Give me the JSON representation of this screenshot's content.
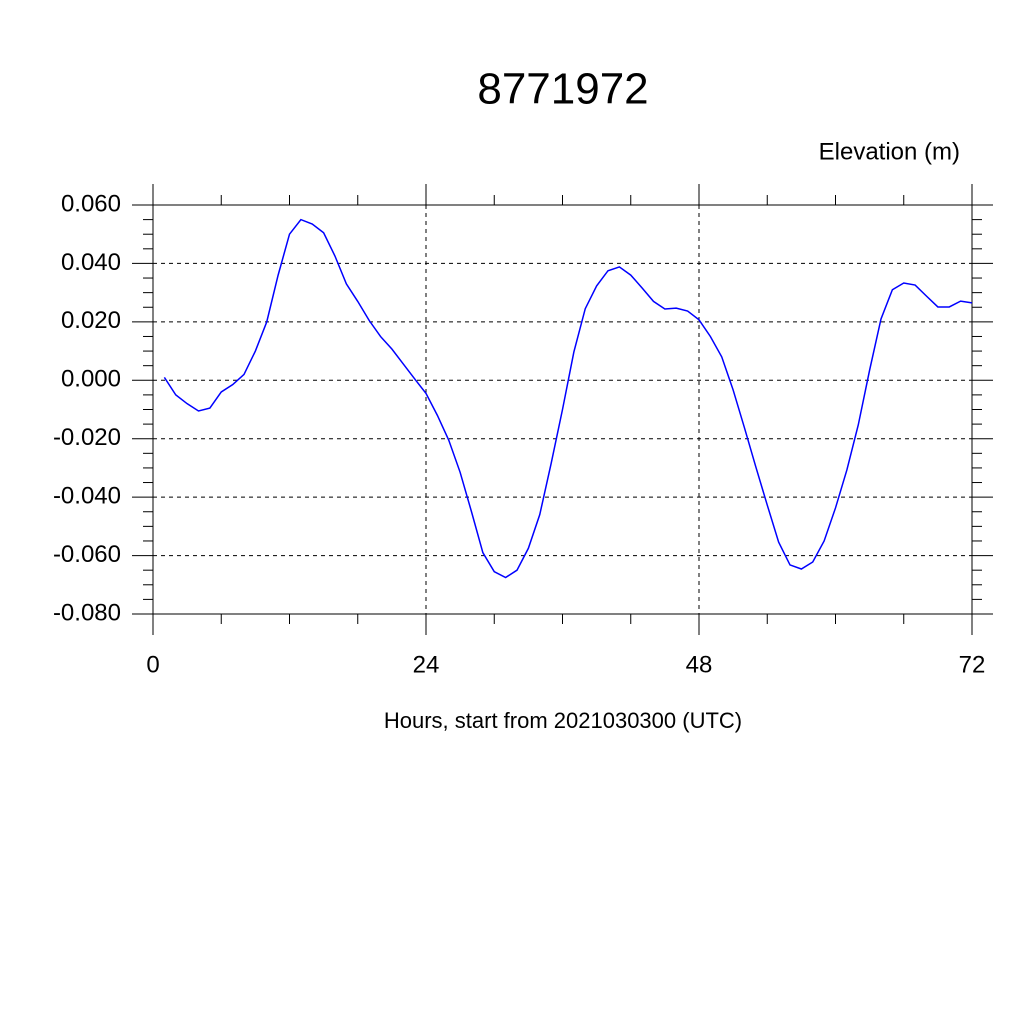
{
  "chart_data": {
    "type": "line",
    "title": "8771972",
    "y_label": "Elevation (m)",
    "x_label": "Hours, start from 2021030300 (UTC)",
    "x": [
      1,
      2,
      3,
      4,
      5,
      6,
      7,
      8,
      9,
      10,
      11,
      12,
      13,
      14,
      15,
      16,
      17,
      18,
      19,
      20,
      21,
      22,
      23,
      24,
      25,
      26,
      27,
      28,
      29,
      30,
      31,
      32,
      33,
      34,
      35,
      36,
      37,
      38,
      39,
      40,
      41,
      42,
      43,
      44,
      45,
      46,
      47,
      48,
      49,
      50,
      51,
      52,
      53,
      54,
      55,
      56,
      57,
      58,
      59,
      60,
      61,
      62,
      63,
      64,
      65,
      66,
      67,
      68,
      69,
      70,
      71,
      72
    ],
    "series": [
      {
        "color": "#0000ff",
        "values": [
          0.001,
          -0.005,
          -0.008,
          -0.0105,
          -0.0095,
          -0.004,
          -0.0015,
          0.002,
          0.01,
          0.02,
          0.036,
          0.05,
          0.055,
          0.0535,
          0.0505,
          0.0425,
          0.033,
          0.027,
          0.0205,
          0.015,
          0.0107,
          0.0056,
          0.0005,
          -0.0045,
          -0.012,
          -0.0205,
          -0.0315,
          -0.045,
          -0.059,
          -0.0655,
          -0.0675,
          -0.065,
          -0.0575,
          -0.046,
          -0.0285,
          -0.01,
          0.0097,
          0.0245,
          0.0323,
          0.0375,
          0.0388,
          0.036,
          0.0316,
          0.027,
          0.0244,
          0.0247,
          0.0237,
          0.0207,
          0.015,
          0.008,
          -0.0033,
          -0.0163,
          -0.0297,
          -0.0427,
          -0.0554,
          -0.0632,
          -0.0646,
          -0.0622,
          -0.055,
          -0.0437,
          -0.0307,
          -0.0153,
          0.0035,
          0.021,
          0.031,
          0.0333,
          0.0326,
          0.0288,
          0.0251,
          0.0251,
          0.0271,
          0.0265
        ]
      }
    ],
    "xlim": [
      0,
      72
    ],
    "xticks": [
      0,
      24,
      48,
      72
    ],
    "ylim": [
      -0.08,
      0.06
    ],
    "yticks": [
      {
        "value": -0.08,
        "label": "-0.080"
      },
      {
        "value": -0.06,
        "label": "-0.060"
      },
      {
        "value": -0.04,
        "label": "-0.040"
      },
      {
        "value": -0.02,
        "label": "-0.020"
      },
      {
        "value": 0,
        "label": "0.000"
      },
      {
        "value": 0.02,
        "label": "0.020"
      },
      {
        "value": 0.04,
        "label": "0.040"
      },
      {
        "value": 0.06,
        "label": "0.060"
      }
    ],
    "grid": true
  }
}
